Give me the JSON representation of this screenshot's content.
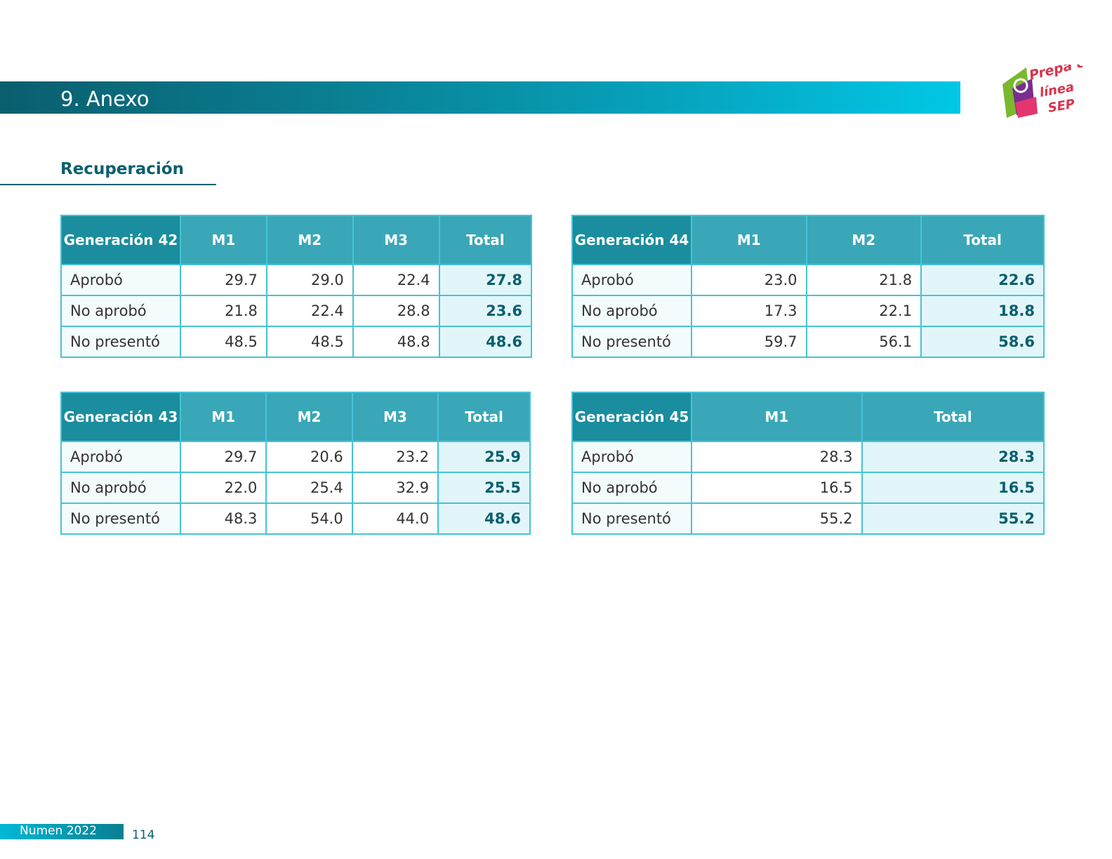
{
  "header": {
    "title": "9. Anexo"
  },
  "logo": {
    "text_1": "Prepa en",
    "text_2": "línea",
    "text_3": "SEP"
  },
  "section": {
    "title": "Recuperación"
  },
  "tables": {
    "g42": {
      "head": [
        "Generación 42",
        "M1",
        "M2",
        "M3",
        "Total"
      ],
      "rows": [
        [
          "Aprobó",
          "29.7",
          "29.0",
          "22.4",
          "27.8"
        ],
        [
          "No aprobó",
          "21.8",
          "22.4",
          "28.8",
          "23.6"
        ],
        [
          "No presentó",
          "48.5",
          "48.5",
          "48.8",
          "48.6"
        ]
      ]
    },
    "g44": {
      "head": [
        "Generación 44",
        "M1",
        "M2",
        "Total"
      ],
      "rows": [
        [
          "Aprobó",
          "23.0",
          "21.8",
          "22.6"
        ],
        [
          "No aprobó",
          "17.3",
          "22.1",
          "18.8"
        ],
        [
          "No presentó",
          "59.7",
          "56.1",
          "58.6"
        ]
      ]
    },
    "g43": {
      "head": [
        "Generación 43",
        "M1",
        "M2",
        "M3",
        "Total"
      ],
      "rows": [
        [
          "Aprobó",
          "29.7",
          "20.6",
          "23.2",
          "25.9"
        ],
        [
          "No aprobó",
          "22.0",
          "25.4",
          "32.9",
          "25.5"
        ],
        [
          "No presentó",
          "48.3",
          "54.0",
          "44.0",
          "48.6"
        ]
      ]
    },
    "g45": {
      "head": [
        "Generación 45",
        "M1",
        "Total"
      ],
      "rows": [
        [
          "Aprobó",
          "28.3",
          "28.3"
        ],
        [
          "No aprobó",
          "16.5",
          "16.5"
        ],
        [
          "No presentó",
          "55.2",
          "55.2"
        ]
      ]
    }
  },
  "footer": {
    "label": "Numen 2022",
    "page": "114"
  }
}
